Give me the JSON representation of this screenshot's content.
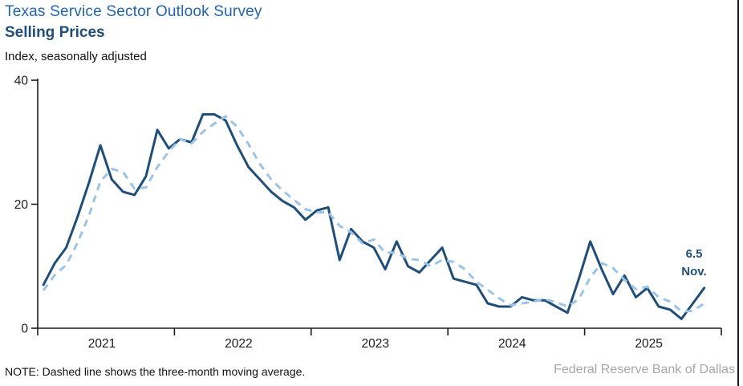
{
  "header": {
    "title": "Texas Service Sector Outlook Survey",
    "subtitle": "Selling Prices",
    "axis_units": "Index, seasonally adjusted"
  },
  "chart_data": {
    "type": "line",
    "title": "Texas Service Sector Outlook Survey — Selling Prices",
    "ylabel": "Index, seasonally adjusted",
    "ylim": [
      0,
      40
    ],
    "y_ticks": [
      0,
      20,
      40
    ],
    "grid": "off",
    "legend_position": "none",
    "x": [
      "2021-01",
      "2021-02",
      "2021-03",
      "2021-04",
      "2021-05",
      "2021-06",
      "2021-07",
      "2021-08",
      "2021-09",
      "2021-10",
      "2021-11",
      "2021-12",
      "2022-01",
      "2022-02",
      "2022-03",
      "2022-04",
      "2022-05",
      "2022-06",
      "2022-07",
      "2022-08",
      "2022-09",
      "2022-10",
      "2022-11",
      "2022-12",
      "2023-01",
      "2023-02",
      "2023-03",
      "2023-04",
      "2023-05",
      "2023-06",
      "2023-07",
      "2023-08",
      "2023-09",
      "2023-10",
      "2023-11",
      "2023-12",
      "2024-01",
      "2024-02",
      "2024-03",
      "2024-04",
      "2024-05",
      "2024-06",
      "2024-07",
      "2024-08",
      "2024-09",
      "2024-10",
      "2024-11",
      "2024-12",
      "2025-01",
      "2025-02",
      "2025-03",
      "2025-04",
      "2025-05",
      "2025-06",
      "2025-07",
      "2025-08",
      "2025-09",
      "2025-10",
      "2025-11"
    ],
    "year_tick_labels": [
      "2021",
      "2022",
      "2023",
      "2024",
      "2025"
    ],
    "series": [
      {
        "name": "Selling prices index",
        "style": "solid",
        "color": "#1f4e79",
        "values": [
          7,
          10.5,
          13,
          18,
          23.5,
          29.5,
          24,
          22,
          21.5,
          24.5,
          32,
          29,
          30.5,
          30,
          34.5,
          34.5,
          33.5,
          29.5,
          26,
          24,
          22,
          20.5,
          19.5,
          17.5,
          19,
          19.5,
          11,
          16,
          14,
          13,
          9.5,
          14,
          10,
          9,
          11,
          13,
          8,
          7.5,
          7,
          4,
          3.5,
          3.5,
          5,
          4.5,
          4.5,
          3.5,
          2.5,
          8,
          14,
          9.5,
          5.5,
          8.5,
          5,
          6.5,
          3.5,
          3,
          1.5,
          4,
          6.5
        ]
      },
      {
        "name": "Three-month moving average",
        "style": "dashed",
        "color": "#9dc3e6",
        "values": [
          6.1,
          8.6,
          10.2,
          13.8,
          18.2,
          23.7,
          25.7,
          25.2,
          22.5,
          22.7,
          26.0,
          28.5,
          30.5,
          29.8,
          31.7,
          33.0,
          34.2,
          32.5,
          29.7,
          26.5,
          24.0,
          22.2,
          20.7,
          19.2,
          18.7,
          18.7,
          16.5,
          15.5,
          13.7,
          14.3,
          12.2,
          12.2,
          11.2,
          11.0,
          10.0,
          11.0,
          10.7,
          9.5,
          7.5,
          6.2,
          4.8,
          3.7,
          4.0,
          4.3,
          4.7,
          4.2,
          3.5,
          4.7,
          8.2,
          10.5,
          9.7,
          7.8,
          6.3,
          6.7,
          5.0,
          4.3,
          2.7,
          2.8,
          4.0
        ]
      }
    ],
    "annotation": {
      "value_label": "6.5",
      "month_label": "Nov."
    }
  },
  "footer": {
    "note": "NOTE: Dashed line shows the three-month moving average.",
    "source": "Federal Reserve Bank of Dallas"
  },
  "colors": {
    "title_line1": "#2264ae",
    "title_line2": "#1f4e79",
    "solid_series": "#1f4e79",
    "dashed_series": "#9dc3e6",
    "axis": "#1c1c1c",
    "tick_text": "#1c1c1c",
    "source_text": "#a7a7a7"
  }
}
